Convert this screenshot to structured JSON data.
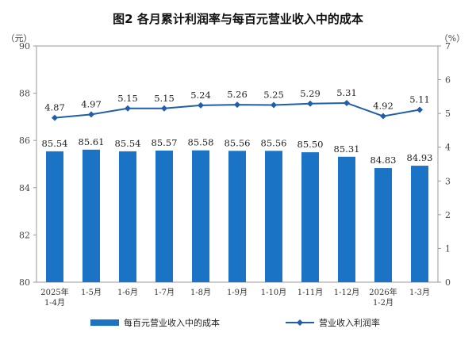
{
  "chart_data": {
    "type": "bar",
    "title": "图2  各月累计利润率与每百元营业收入中的成本",
    "left_unit": "（元）",
    "right_unit": "（%）",
    "categories": [
      [
        "2025年",
        "1-4月"
      ],
      [
        "1-5月"
      ],
      [
        "1-6月"
      ],
      [
        "1-7月"
      ],
      [
        "1-8月"
      ],
      [
        "1-9月"
      ],
      [
        "1-10月"
      ],
      [
        "1-11月"
      ],
      [
        "1-12月"
      ],
      [
        "2026年",
        "1-2月"
      ],
      [
        "1-3月"
      ]
    ],
    "series": [
      {
        "name": "每百元营业收入中的成本",
        "type": "bar",
        "axis": "left",
        "color": "#1a73c4",
        "values": [
          85.54,
          85.61,
          85.54,
          85.57,
          85.58,
          85.56,
          85.56,
          85.5,
          85.31,
          84.83,
          84.93
        ]
      },
      {
        "name": "营业收入利润率",
        "type": "line",
        "axis": "right",
        "color": "#1f5ea8",
        "values": [
          4.87,
          4.97,
          5.15,
          5.15,
          5.24,
          5.26,
          5.25,
          5.29,
          5.31,
          4.92,
          5.11
        ]
      }
    ],
    "left_axis": {
      "min": 80,
      "max": 90,
      "ticks": [
        "80",
        "82",
        "84",
        "86",
        "88",
        "90"
      ]
    },
    "right_axis": {
      "min": 0,
      "max": 7,
      "ticks": [
        "0",
        "1",
        "2",
        "3",
        "4",
        "5",
        "6",
        "7"
      ]
    },
    "grid": false,
    "legend_position": "bottom"
  }
}
